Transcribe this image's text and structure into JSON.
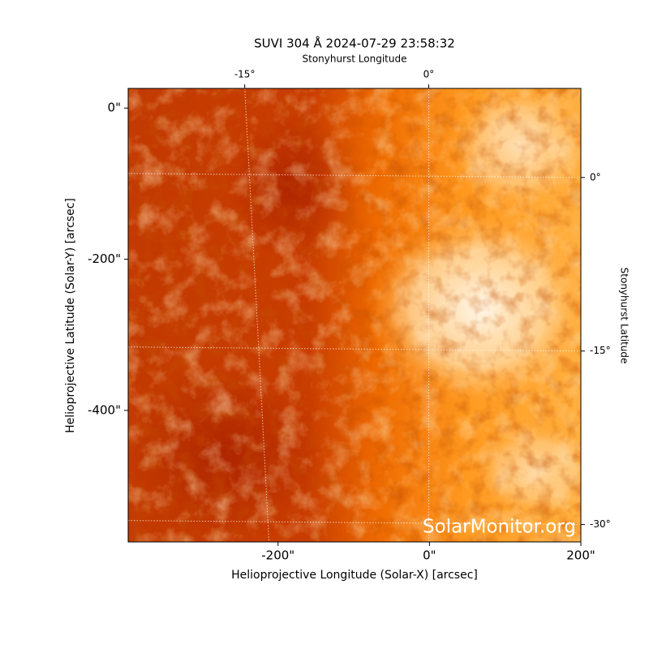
{
  "chart_data": {
    "type": "image",
    "title": "SUVI 304 Å 2024-07-29 23:58:32",
    "xlabel": "Helioprojective Longitude (Solar-X) [arcsec]",
    "ylabel": "Helioprojective Latitude (Solar-Y) [arcsec]",
    "x2label": "Stonyhurst Longitude",
    "y2label": "Stonyhurst Latitude",
    "annotation": "SolarMonitor.org",
    "xlim": [
      -398,
      200
    ],
    "ylim": [
      -574,
      26
    ],
    "xticks": [
      {
        "value": -200,
        "label": "-200\""
      },
      {
        "value": 0,
        "label": "0\""
      },
      {
        "value": 200,
        "label": "200\""
      }
    ],
    "yticks": [
      {
        "value": 0,
        "label": "0\""
      },
      {
        "value": -200,
        "label": "-200\""
      },
      {
        "value": -400,
        "label": "-400\""
      }
    ],
    "x2lim": [
      -24.5,
      12.4
    ],
    "x2ticks": [
      {
        "value": -15,
        "label": "-15°"
      },
      {
        "value": 0,
        "label": "0°"
      }
    ],
    "y2lim": [
      7.7,
      -31.5
    ],
    "y2ticks": [
      {
        "value": 0,
        "label": "0°"
      },
      {
        "value": -15,
        "label": "-15°"
      },
      {
        "value": -30,
        "label": "-30°"
      }
    ],
    "grid": true
  }
}
